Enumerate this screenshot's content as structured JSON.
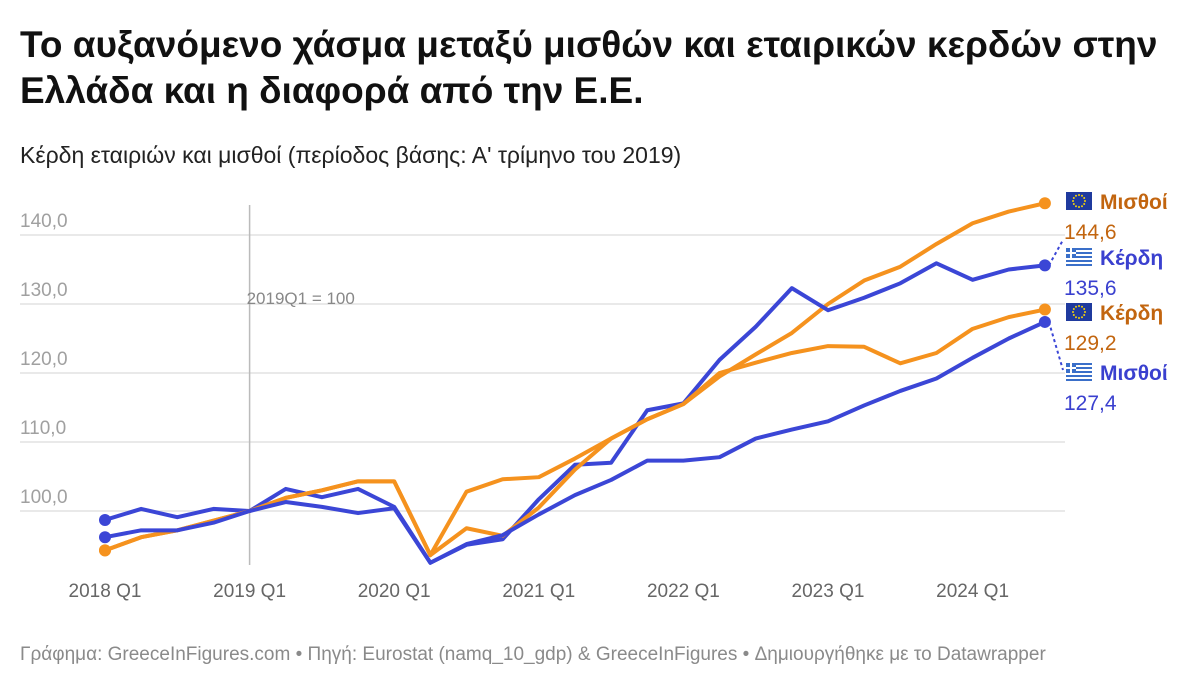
{
  "title": "Το αυξανόμενο χάσμα μεταξύ μισθών και εταιρικών κερδών στην Ελλάδα και η διαφορά από την Ε.Ε.",
  "subtitle": "Κέρδη εταιριών και μισθοί (περίοδος βάσης: Α' τρίμηνο του 2019)",
  "footer": "Γράφημα: GreeceInFigures.com • Πηγή: Eurostat (namq_10_gdp) & GreeceInFigures • Δημιουργήθηκε με το Datawrapper",
  "chart_data": {
    "type": "line",
    "x": [
      "2018Q1",
      "2018Q2",
      "2018Q3",
      "2018Q4",
      "2019Q1",
      "2019Q2",
      "2019Q3",
      "2019Q4",
      "2020Q1",
      "2020Q2",
      "2020Q3",
      "2020Q4",
      "2021Q1",
      "2021Q2",
      "2021Q3",
      "2021Q4",
      "2022Q1",
      "2022Q2",
      "2022Q3",
      "2022Q4",
      "2023Q1",
      "2023Q2",
      "2023Q3",
      "2023Q4",
      "2024Q1",
      "2024Q2",
      "2024Q3"
    ],
    "x_ticks": [
      "2018 Q1",
      "2019 Q1",
      "2020 Q1",
      "2021 Q1",
      "2022 Q1",
      "2023 Q1",
      "2024 Q1"
    ],
    "y_ticks": [
      "100,0",
      "110,0",
      "120,0",
      "130,0",
      "140,0"
    ],
    "ylim": [
      92,
      146
    ],
    "annotation": "2019Q1 = 100",
    "grid": true,
    "series": [
      {
        "name": "Μισθοί",
        "region": "EU",
        "flag": "eu",
        "color": "#f5921e",
        "label_color": "#c2650f",
        "end_label": "144,6",
        "values": [
          94.3,
          96.2,
          97.2,
          98.6,
          100,
          101.9,
          103,
          104.3,
          104.3,
          93.6,
          102.8,
          104.6,
          104.9,
          107.6,
          110.5,
          113.3,
          115.5,
          119.5,
          122.7,
          125.8,
          130,
          133.4,
          135.4,
          138.7,
          141.7,
          143.4,
          144.6
        ]
      },
      {
        "name": "Κέρδη",
        "region": "GR",
        "flag": "gr",
        "color": "#3b46d6",
        "label_color": "#3a40cf",
        "end_label": "135,6",
        "values": [
          98.7,
          100.3,
          99.1,
          100.3,
          100,
          103.2,
          102,
          103.2,
          100.6,
          92.5,
          95.1,
          95.9,
          101.7,
          106.7,
          107,
          114.6,
          115.6,
          121.9,
          126.7,
          132.3,
          129.1,
          130.9,
          133,
          135.9,
          133.5,
          135,
          135.6
        ]
      },
      {
        "name": "Κέρδη",
        "region": "EU",
        "flag": "eu",
        "color": "#f5921e",
        "label_color": "#c2650f",
        "end_label": "129,2",
        "values": [
          94.3,
          96.2,
          97.2,
          98.6,
          100,
          101.9,
          103,
          104.3,
          104.3,
          93.6,
          97.5,
          96.4,
          100.5,
          106,
          110.5,
          113.3,
          115.5,
          120,
          121.5,
          122.9,
          123.9,
          123.8,
          121.4,
          122.9,
          126.4,
          128.1,
          129.2
        ]
      },
      {
        "name": "Μισθοί",
        "region": "GR",
        "flag": "gr",
        "color": "#3b46d6",
        "label_color": "#3a40cf",
        "end_label": "127,4",
        "values": [
          96.2,
          97.2,
          97.2,
          98.3,
          100,
          101.3,
          100.6,
          99.7,
          100.4,
          92.5,
          95.2,
          96.5,
          99.5,
          102.3,
          104.5,
          107.3,
          107.3,
          107.8,
          110.5,
          111.8,
          113,
          115.3,
          117.4,
          119.2,
          122.2,
          125,
          127.4
        ]
      }
    ]
  }
}
